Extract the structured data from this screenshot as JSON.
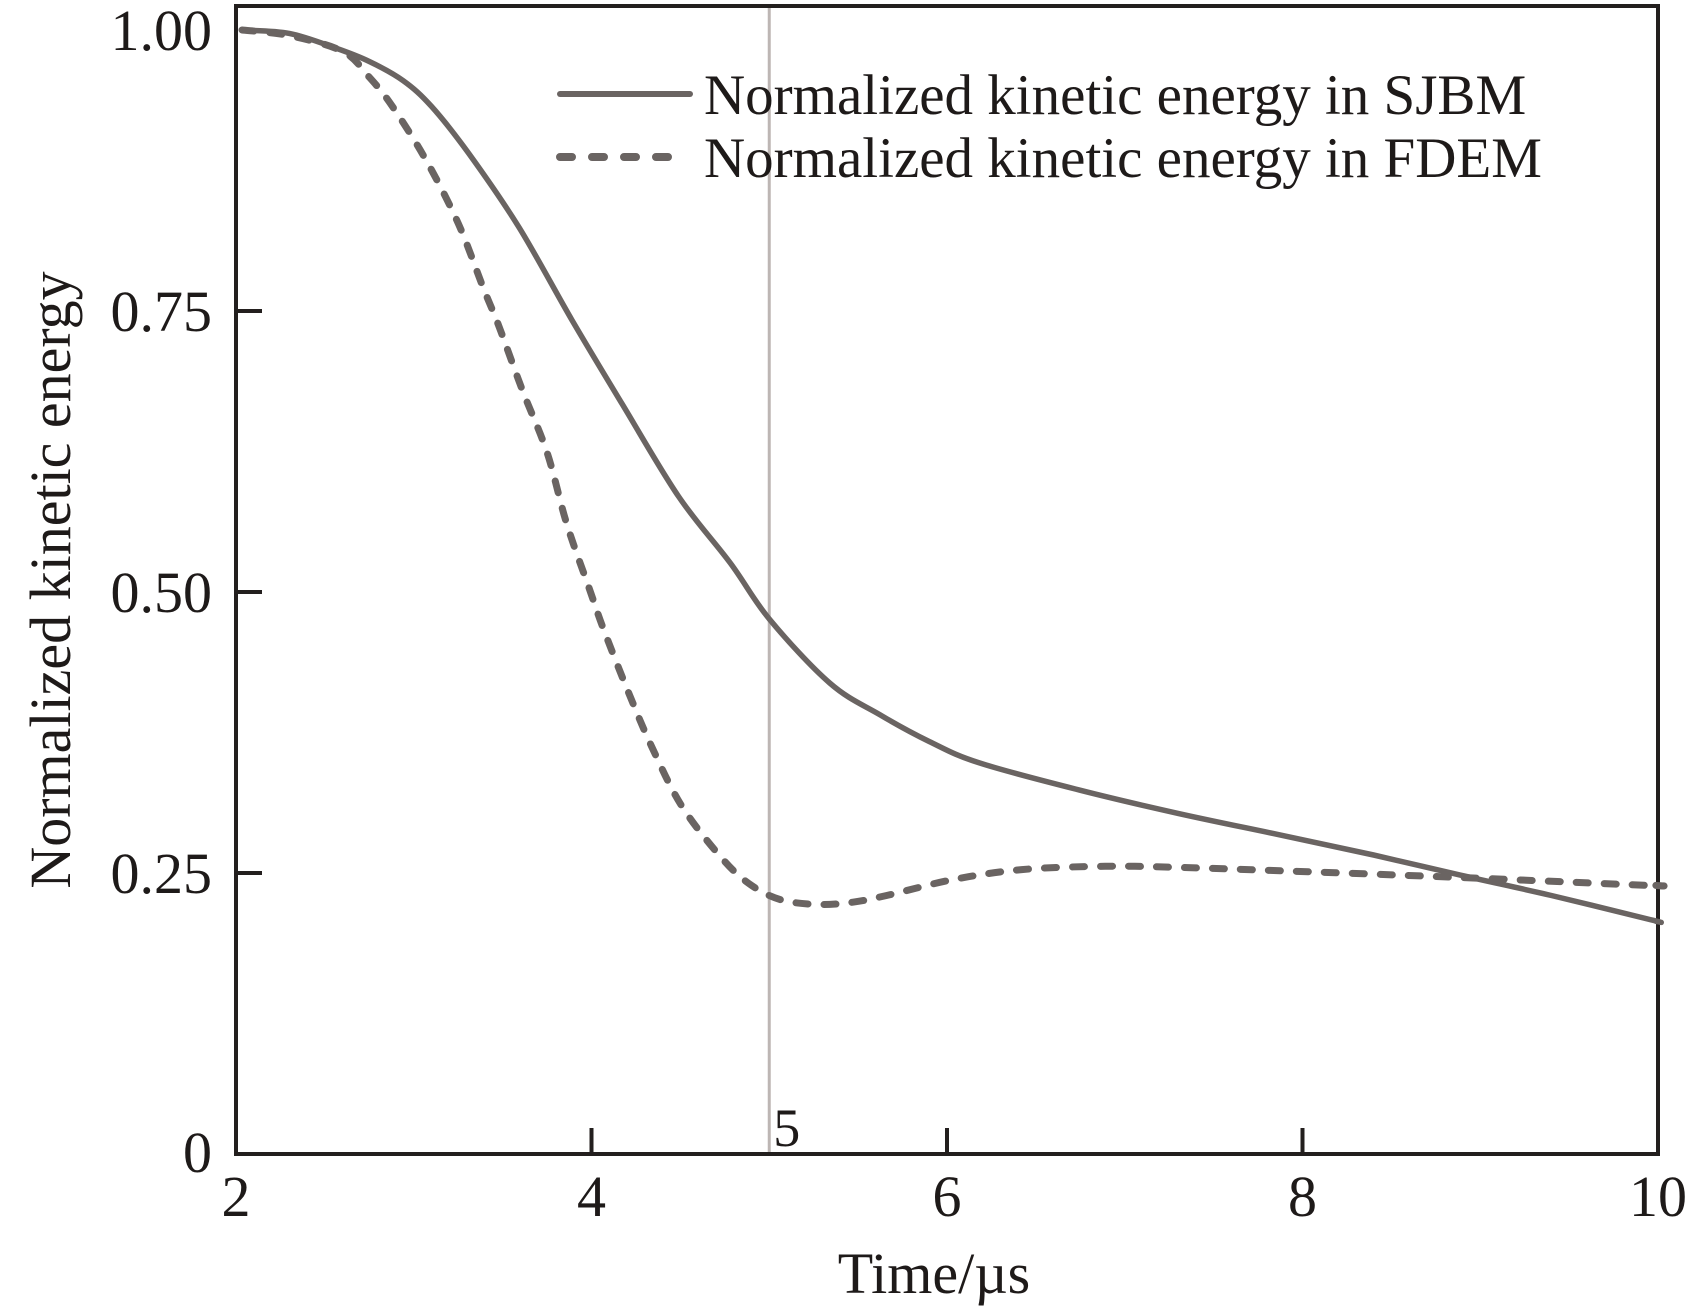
{
  "chart_data": {
    "type": "line",
    "title": "",
    "xlabel": "Time/µs",
    "ylabel": "Normalized kinetic energy",
    "xlim": [
      2,
      10
    ],
    "ylim": [
      0,
      1.0
    ],
    "xticks": [
      2,
      4,
      6,
      8,
      10
    ],
    "xtick_labels": [
      "2",
      "4",
      "6",
      "8",
      "10"
    ],
    "yticks": [
      0,
      0.25,
      0.5,
      0.75,
      1.0
    ],
    "ytick_labels": [
      "0",
      "0.25",
      "0.50",
      "0.75",
      "1.00"
    ],
    "grid": false,
    "legend_position": "top-right",
    "reference_line": {
      "x": 5,
      "label": "5",
      "color": "#bdb6b4"
    },
    "colors": {
      "axis": "#231f1e",
      "series": "#6a6462"
    },
    "series": [
      {
        "name": "Normalized kinetic energy in SJBM",
        "style": "solid",
        "x": [
          2.0,
          2.3,
          2.56,
          2.75,
          2.94,
          3.1,
          3.31,
          3.59,
          3.89,
          4.17,
          4.49,
          4.78,
          5.0,
          5.34,
          5.62,
          5.9,
          6.18,
          6.74,
          7.3,
          7.87,
          8.4,
          8.89,
          9.4,
          9.97,
          10.0
        ],
        "y": [
          1.0,
          0.997,
          0.984,
          0.972,
          0.955,
          0.932,
          0.89,
          0.825,
          0.742,
          0.668,
          0.585,
          0.526,
          0.476,
          0.419,
          0.391,
          0.367,
          0.348,
          0.324,
          0.303,
          0.284,
          0.266,
          0.248,
          0.23,
          0.208,
          0.207
        ]
      },
      {
        "name": "Normalized kinetic energy in FDEM",
        "style": "dashed",
        "x": [
          2.0,
          2.3,
          2.6,
          2.75,
          2.88,
          3.07,
          3.25,
          3.39,
          3.48,
          3.61,
          3.75,
          3.86,
          3.99,
          4.07,
          4.21,
          4.34,
          4.51,
          4.74,
          4.9,
          5.07,
          5.28,
          5.47,
          5.66,
          6.03,
          6.42,
          6.89,
          7.3,
          7.88,
          8.89,
          9.94,
          10.0
        ],
        "y": [
          1.0,
          0.995,
          0.981,
          0.958,
          0.932,
          0.884,
          0.828,
          0.771,
          0.736,
          0.68,
          0.624,
          0.561,
          0.502,
          0.466,
          0.41,
          0.362,
          0.309,
          0.262,
          0.239,
          0.226,
          0.222,
          0.224,
          0.23,
          0.244,
          0.253,
          0.256,
          0.255,
          0.252,
          0.246,
          0.239,
          0.239
        ]
      }
    ]
  }
}
